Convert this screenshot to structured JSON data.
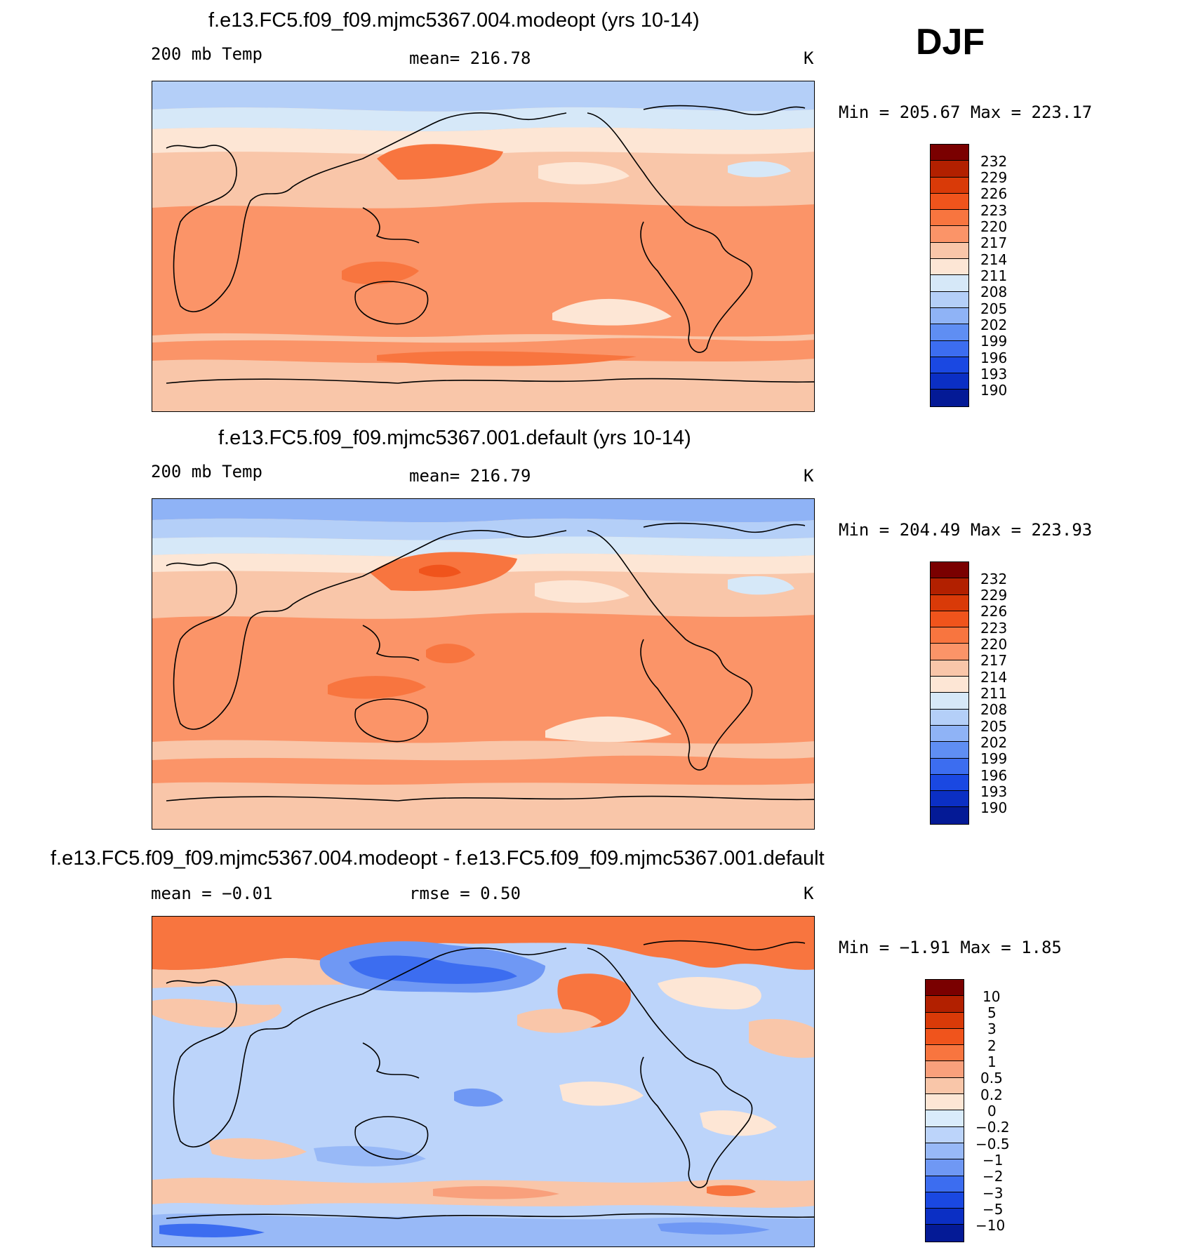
{
  "season": "DJF",
  "panels": [
    {
      "title": "f.e13.FC5.f09_f09.mjmc5367.004.modeopt (yrs 10-14)",
      "left_label": "200 mb Temp",
      "center_label": "mean=  216.78",
      "units": "K",
      "minmax": "Min  =  205.67  Max  =  223.17",
      "levels": [
        "232",
        "229",
        "226",
        "223",
        "220",
        "217",
        "214",
        "211",
        "208",
        "205",
        "202",
        "199",
        "196",
        "193",
        "190"
      ]
    },
    {
      "title": "f.e13.FC5.f09_f09.mjmc5367.001.default (yrs 10-14)",
      "left_label": "200 mb Temp",
      "center_label": "mean=  216.79",
      "units": "K",
      "minmax": "Min  =  204.49  Max  =  223.93",
      "levels": [
        "232",
        "229",
        "226",
        "223",
        "220",
        "217",
        "214",
        "211",
        "208",
        "205",
        "202",
        "199",
        "196",
        "193",
        "190"
      ]
    },
    {
      "title": "f.e13.FC5.f09_f09.mjmc5367.004.modeopt - f.e13.FC5.f09_f09.mjmc5367.001.default",
      "left_label": "mean  =    −0.01",
      "center_label": "rmse  =     0.50",
      "units": "K",
      "minmax": "Min  =    −1.91  Max  =     1.85",
      "levels": [
        "10",
        "5",
        "3",
        "2",
        "1",
        "0.5",
        "0.2",
        "0",
        "−0.2",
        "−0.5",
        "−1",
        "−2",
        "−3",
        "−5",
        "−10"
      ]
    }
  ],
  "colors": {
    "abs_scale": [
      "#7a0000",
      "#b22000",
      "#d93a08",
      "#f0541c",
      "#f8753f",
      "#fb9468",
      "#f9c6a9",
      "#fde6d5",
      "#d6e8f8",
      "#b4cff8",
      "#8fb3f6",
      "#5f8ef3",
      "#3c6df0",
      "#1a48e2",
      "#0b2fc4",
      "#041a96"
    ],
    "diff_scale": [
      "#7a0000",
      "#b22000",
      "#d93a08",
      "#f0541c",
      "#f8753f",
      "#f9a07c",
      "#f9c6a9",
      "#fde6d5",
      "#d9ebfb",
      "#bcd4fa",
      "#98b9f7",
      "#6f98f4",
      "#3c6df0",
      "#1a48e2",
      "#0b2fc4",
      "#041a96"
    ]
  }
}
